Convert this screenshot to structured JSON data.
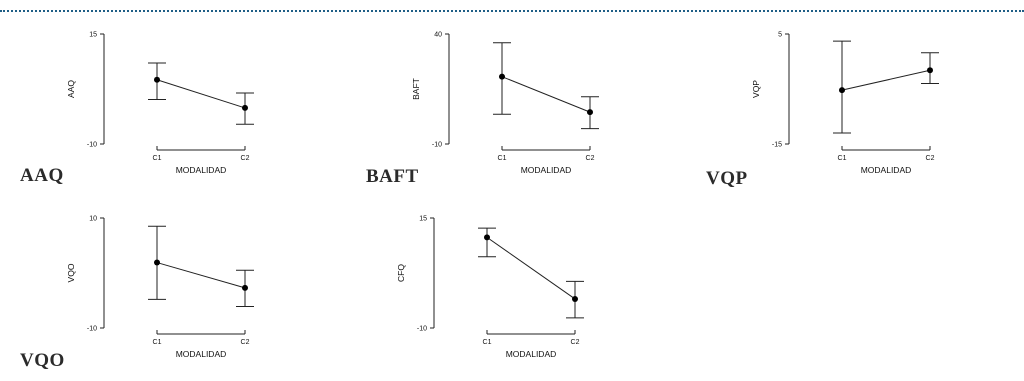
{
  "captions": [
    "AAQ",
    "BAFT",
    "VQP",
    "VQO"
  ],
  "chart_data": [
    {
      "type": "line",
      "categories": [
        "C1",
        "C2"
      ],
      "xlabel": "MODALIDAD",
      "ylabel": "AAQ",
      "ylim": [
        -10,
        15
      ],
      "yticks": [
        "15",
        "-10"
      ],
      "values": [
        4.6,
        -1.8
      ],
      "err_low": [
        0.1,
        -5.5
      ],
      "err_high": [
        8.4,
        1.6
      ]
    },
    {
      "type": "line",
      "categories": [
        "C1",
        "C2"
      ],
      "xlabel": "MODALIDAD",
      "ylabel": "BAFT",
      "ylim": [
        -10,
        40
      ],
      "yticks": [
        "40",
        "-10"
      ],
      "values": [
        20.6,
        4.5
      ],
      "err_low": [
        3.5,
        -3
      ],
      "err_high": [
        36,
        11.5
      ]
    },
    {
      "type": "line",
      "categories": [
        "C1",
        "C2"
      ],
      "xlabel": "MODALIDAD",
      "ylabel": "VQP",
      "ylim": [
        -15,
        5
      ],
      "yticks": [
        "5",
        "-15"
      ],
      "values": [
        -5.2,
        -1.6
      ],
      "err_low": [
        -13,
        -4
      ],
      "err_high": [
        3.7,
        1.6
      ]
    },
    {
      "type": "line",
      "categories": [
        "C1",
        "C2"
      ],
      "xlabel": "MODALIDAD",
      "ylabel": "VQO",
      "ylim": [
        -10,
        10
      ],
      "yticks": [
        "10",
        "-10"
      ],
      "values": [
        1.9,
        -2.7
      ],
      "err_low": [
        -4.8,
        -6.1
      ],
      "err_high": [
        8.5,
        0.5
      ]
    },
    {
      "type": "line",
      "categories": [
        "C1",
        "C2"
      ],
      "xlabel": "MODALIDAD",
      "ylabel": "CFQ",
      "ylim": [
        -10,
        15
      ],
      "yticks": [
        "15",
        "-10"
      ],
      "values": [
        10.6,
        -3.4
      ],
      "err_low": [
        6.2,
        -7.7
      ],
      "err_high": [
        12.7,
        0.6
      ]
    }
  ]
}
